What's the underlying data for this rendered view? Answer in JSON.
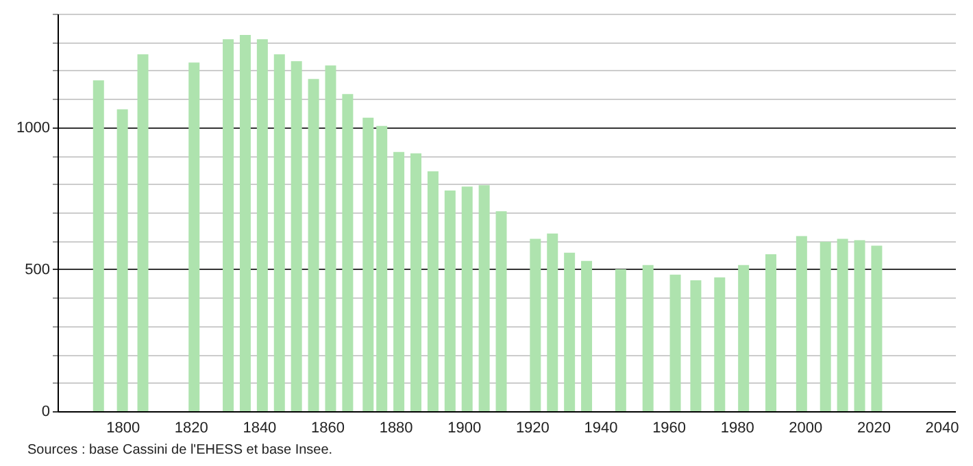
{
  "chart_data": {
    "type": "bar",
    "x": [
      1793,
      1800,
      1806,
      1821,
      1831,
      1836,
      1841,
      1846,
      1851,
      1856,
      1861,
      1866,
      1872,
      1876,
      1881,
      1886,
      1891,
      1896,
      1901,
      1906,
      1911,
      1921,
      1926,
      1931,
      1936,
      1946,
      1954,
      1962,
      1968,
      1975,
      1982,
      1990,
      1999,
      2006,
      2011,
      2016,
      2021
    ],
    "values": [
      1165,
      1063,
      1257,
      1228,
      1310,
      1325,
      1310,
      1257,
      1233,
      1170,
      1218,
      1117,
      1034,
      1005,
      913,
      908,
      845,
      777,
      791,
      796,
      704,
      607,
      626,
      558,
      529,
      500,
      515,
      481,
      461,
      471,
      515,
      553,
      617,
      597,
      607,
      602,
      583
    ],
    "color": "#aee3ae",
    "xlim": [
      1781,
      2044
    ],
    "xticks": [
      1800,
      1820,
      1840,
      1860,
      1880,
      1900,
      1920,
      1940,
      1960,
      1980,
      2000,
      2020,
      2040
    ],
    "ylim": [
      0,
      1400
    ],
    "yticks": [
      0,
      {
        "value": 100,
        "label": null
      },
      {
        "value": 200,
        "label": null
      },
      {
        "value": 300,
        "label": null
      },
      {
        "value": 400,
        "label": null
      },
      500,
      {
        "value": 600,
        "label": null
      },
      {
        "value": 700,
        "label": null
      },
      {
        "value": 800,
        "label": null
      },
      {
        "value": 900,
        "label": null
      },
      1000,
      {
        "value": 1100,
        "label": null
      },
      {
        "value": 1200,
        "label": null
      },
      {
        "value": 1300,
        "label": null
      },
      {
        "value": 1400,
        "label": null
      }
    ],
    "grid": "y",
    "annotations": [
      "Sources : base Cassini de l'EHESS et base Insee."
    ]
  }
}
